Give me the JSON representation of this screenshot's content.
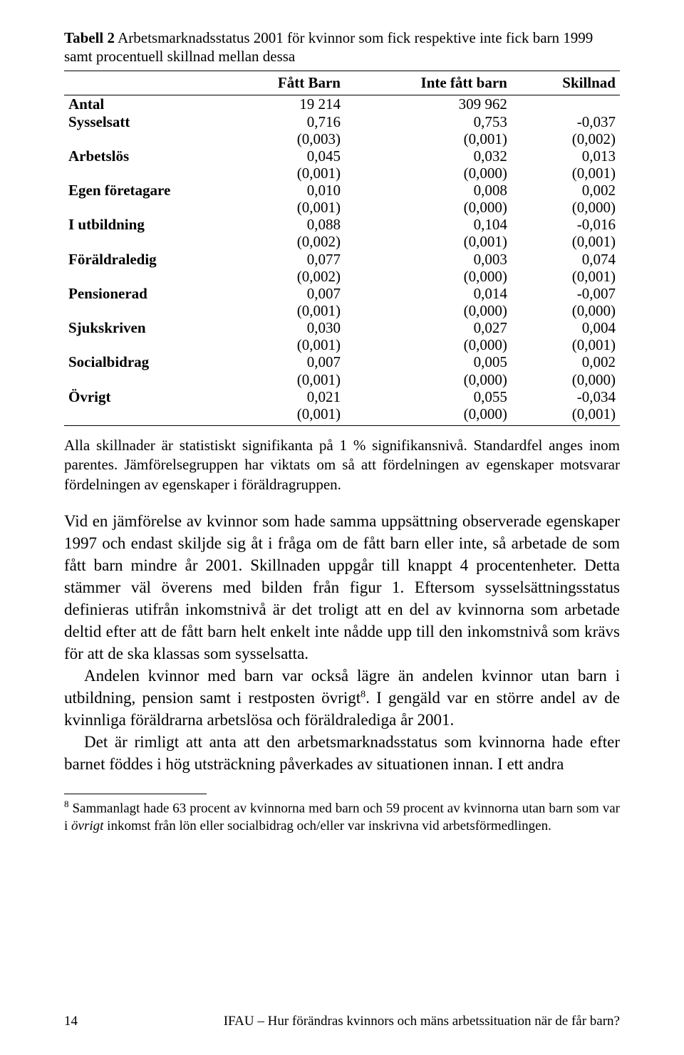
{
  "table": {
    "caption_prefix": "Tabell 2",
    "caption_rest": " Arbetsmarknadsstatus 2001 för kvinnor som fick respektive inte fick barn 1999 samt procentuell skillnad mellan dessa",
    "columns": [
      "Fått Barn",
      "Inte fått barn",
      "Skillnad"
    ],
    "rows": [
      {
        "label": "Antal",
        "vals": [
          "19 214",
          "309 962",
          ""
        ],
        "se": [
          "",
          "",
          ""
        ]
      },
      {
        "label": "Sysselsatt",
        "vals": [
          "0,716",
          "0,753",
          "-0,037"
        ],
        "se": [
          "(0,003)",
          "(0,001)",
          "(0,002)"
        ]
      },
      {
        "label": "Arbetslös",
        "vals": [
          "0,045",
          "0,032",
          "0,013"
        ],
        "se": [
          "(0,001)",
          "(0,000)",
          "(0,001)"
        ]
      },
      {
        "label": "Egen företagare",
        "vals": [
          "0,010",
          "0,008",
          "0,002"
        ],
        "se": [
          "(0,001)",
          "(0,000)",
          "(0,000)"
        ]
      },
      {
        "label": "I utbildning",
        "vals": [
          "0,088",
          "0,104",
          "-0,016"
        ],
        "se": [
          "(0,002)",
          "(0,001)",
          "(0,001)"
        ]
      },
      {
        "label": "Föräldraledig",
        "vals": [
          "0,077",
          "0,003",
          "0,074"
        ],
        "se": [
          "(0,002)",
          "(0,000)",
          "(0,001)"
        ]
      },
      {
        "label": "Pensionerad",
        "vals": [
          "0,007",
          "0,014",
          "-0,007"
        ],
        "se": [
          "(0,001)",
          "(0,000)",
          "(0,000)"
        ]
      },
      {
        "label": "Sjukskriven",
        "vals": [
          "0,030",
          "0,027",
          "0,004"
        ],
        "se": [
          "(0,001)",
          "(0,000)",
          "(0,001)"
        ]
      },
      {
        "label": "Socialbidrag",
        "vals": [
          "0,007",
          "0,005",
          "0,002"
        ],
        "se": [
          "(0,001)",
          "(0,000)",
          "(0,000)"
        ]
      },
      {
        "label": "Övrigt",
        "vals": [
          "0,021",
          "0,055",
          "-0,034"
        ],
        "se": [
          "(0,001)",
          "(0,000)",
          "(0,001)"
        ]
      }
    ]
  },
  "note": "Alla skillnader är statistiskt signifikanta på 1 % signifikansnivå. Standardfel anges inom parentes. Jämförelsegruppen har viktats om så att fördelningen av egenskaper motsvarar fördelningen av egenskaper i föräldragruppen.",
  "para1": "Vid en jämförelse av kvinnor som hade samma uppsättning observerade egenskaper 1997 och endast skiljde sig åt i fråga om de fått barn eller inte, så arbetade de som fått barn mindre år 2001. Skillnaden uppgår till knappt 4 procentenheter. Detta stämmer väl överens med bilden från figur 1. Eftersom sysselsättningsstatus definieras utifrån inkomstnivå är det troligt att en del av kvinnorna som arbetade deltid efter att de fått barn helt enkelt inte nådde upp till den inkomstnivå som krävs för att de ska klassas som sysselsatta.",
  "para2_pre": "Andelen kvinnor med barn var också lägre än andelen kvinnor utan barn i utbildning, pension samt i restposten övrigt",
  "para2_fn": "8",
  "para2_post": ". I gengäld var en större andel av de kvinnliga föräldrarna arbetslösa och föräldralediga år 2001.",
  "para3": "Det är rimligt att anta att den arbetsmarknadsstatus som kvinnorna hade efter barnet föddes i hög utsträckning påverkades av situationen innan. I ett andra",
  "footnote_num": "8",
  "footnote_pre": "Sammanlagt hade 63 procent av kvinnorna med barn och 59 procent av kvinnorna utan barn som var i ",
  "footnote_italic": "övrigt",
  "footnote_post": " inkomst från lön eller socialbidrag och/eller var inskrivna vid arbetsförmedlingen.",
  "footer_page": "14",
  "footer_text": "IFAU – Hur förändras kvinnors och mäns arbetssituation när de får barn?"
}
